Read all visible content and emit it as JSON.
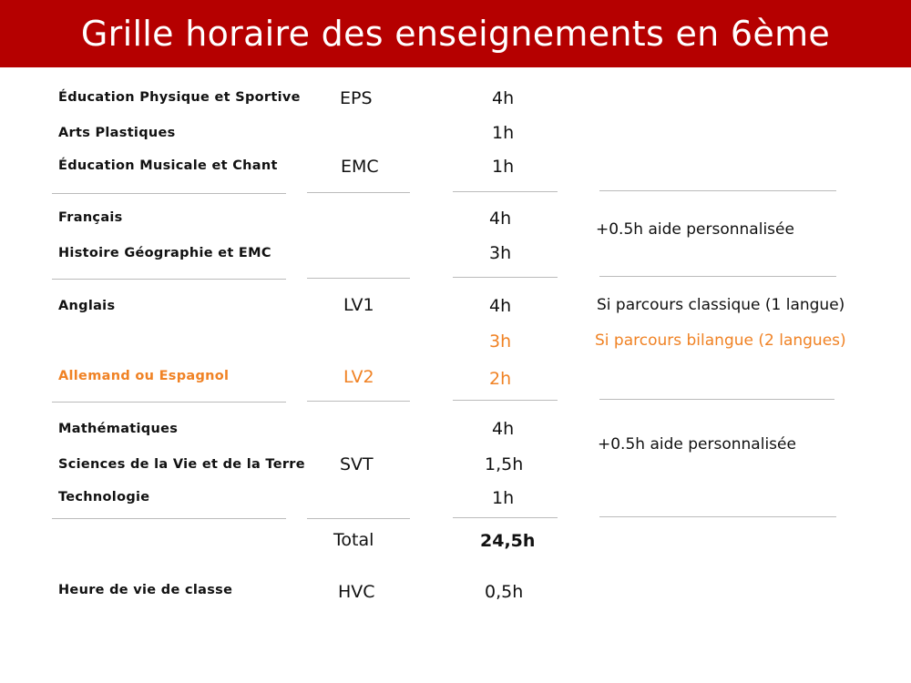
{
  "header": {
    "title": "Grille horaire des enseignements en 6ème"
  },
  "rows": [
    {
      "subject": "Éducation Physique et Sportive",
      "abbr": "EPS",
      "hours": "4h"
    },
    {
      "subject": "Arts Plastiques",
      "hours": "1h"
    },
    {
      "subject": "Éducation Musicale et Chant",
      "abbr": "EMC",
      "hours": "1h"
    },
    {
      "subject": "Français",
      "hours": "4h"
    },
    {
      "subject": "Histoire Géographie et EMC",
      "hours": "3h"
    },
    {
      "subject": "Anglais",
      "abbr": "LV1",
      "hours": "4h",
      "hours_alt": "3h"
    },
    {
      "subject": "Allemand ou Espagnol",
      "abbr": "LV2",
      "hours": "2h"
    },
    {
      "subject": "Mathématiques",
      "hours": "4h"
    },
    {
      "subject": "Sciences de la Vie et de la Terre",
      "abbr": "SVT",
      "hours": "1,5h"
    },
    {
      "subject": "Technologie",
      "hours": "1h"
    }
  ],
  "notes": {
    "francais_group": "+0.5h aide personnalisée",
    "classique": "Si parcours classique (1 langue)",
    "bilangue": "Si parcours bilangue (2 langues)",
    "sciences_group": "+0.5h aide personnalisée"
  },
  "total": {
    "label": "Total",
    "value": "24,5h"
  },
  "vie_de_classe": {
    "subject": "Heure de vie de classe",
    "abbr": "HVC",
    "hours": "0,5h"
  },
  "colors": {
    "banner": "#b50000",
    "accent_orange": "#f08224",
    "separator": "#bbbbbb"
  }
}
